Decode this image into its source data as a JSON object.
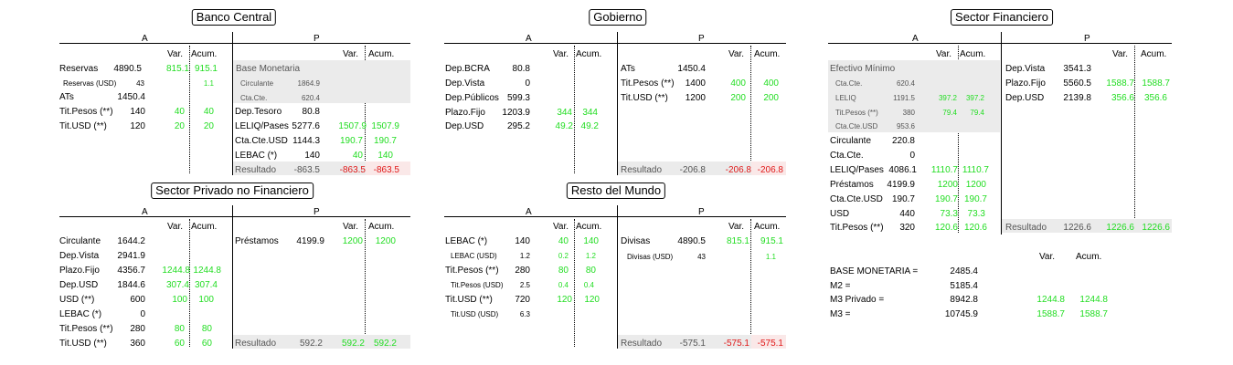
{
  "col_a": "A",
  "col_p": "P",
  "var": "Var.",
  "acum": "Acum.",
  "banco_central": {
    "title": "Banco Central",
    "assets": [
      {
        "label": "Reservas",
        "value": "4890.5",
        "var": "815.1",
        "acum": "915.1"
      },
      {
        "label": "Reservas (USD)",
        "value": "43",
        "var": "",
        "acum": "1.1",
        "small": true
      },
      {
        "label": "ATs",
        "value": "1450.4",
        "var": "",
        "acum": ""
      },
      {
        "label": "Tit.Pesos (**)",
        "value": "140",
        "var": "40",
        "acum": "40"
      },
      {
        "label": "Tit.USD (**)",
        "value": "120",
        "var": "20",
        "acum": "20"
      }
    ],
    "base_monetaria": "Base Monetaria",
    "base_items": [
      {
        "label": "Circulante",
        "value": "1864.9"
      },
      {
        "label": "Cta.Cte.",
        "value": "620.4"
      }
    ],
    "liabilities": [
      {
        "label": "Dep.Tesoro",
        "value": "80.8",
        "var": "",
        "acum": ""
      },
      {
        "label": "LELIQ/Pases",
        "value": "5277.6",
        "var": "1507.9",
        "acum": "1507.9"
      },
      {
        "label": "Cta.Cte.USD",
        "value": "1144.3",
        "var": "190.7",
        "acum": "190.7"
      },
      {
        "label": "LEBAC (*)",
        "value": "140",
        "var": "40",
        "acum": "140"
      }
    ],
    "resultado": {
      "label": "Resultado",
      "value": "-863.5",
      "var": "-863.5",
      "acum": "-863.5"
    }
  },
  "gobierno": {
    "title": "Gobierno",
    "assets": [
      {
        "label": "Dep.BCRA",
        "value": "80.8",
        "var": "",
        "acum": ""
      },
      {
        "label": "Dep.Vista",
        "value": "0",
        "var": "",
        "acum": ""
      },
      {
        "label": "Dep.Públicos",
        "value": "599.3",
        "var": "",
        "acum": ""
      },
      {
        "label": "Plazo.Fijo",
        "value": "1203.9",
        "var": "344",
        "acum": "344"
      },
      {
        "label": "Dep.USD",
        "value": "295.2",
        "var": "49.2",
        "acum": "49.2"
      }
    ],
    "liabilities": [
      {
        "label": "ATs",
        "value": "1450.4",
        "var": "",
        "acum": ""
      },
      {
        "label": "Tit.Pesos (**)",
        "value": "1400",
        "var": "400",
        "acum": "400"
      },
      {
        "label": "Tit.USD (**)",
        "value": "1200",
        "var": "200",
        "acum": "200"
      }
    ],
    "resultado": {
      "label": "Resultado",
      "value": "-206.8",
      "var": "-206.8",
      "acum": "-206.8"
    }
  },
  "sector_financiero": {
    "title": "Sector Financiero",
    "efectivo": "Efectivo Mínimo",
    "efectivo_items": [
      {
        "label": "Cta.Cte.",
        "value": "620.4",
        "var": "",
        "acum": ""
      },
      {
        "label": "LELIQ",
        "value": "1191.5",
        "var": "397.2",
        "acum": "397.2"
      },
      {
        "label": "Tit.Pesos (**)",
        "value": "380",
        "var": "79.4",
        "acum": "79.4"
      },
      {
        "label": "Cta.Cte.USD",
        "value": "953.6",
        "var": "",
        "acum": ""
      }
    ],
    "assets": [
      {
        "label": "Circulante",
        "value": "220.8",
        "var": "",
        "acum": ""
      },
      {
        "label": "Cta.Cte.",
        "value": "0",
        "var": "",
        "acum": ""
      },
      {
        "label": "LELIQ/Pases",
        "value": "4086.1",
        "var": "1110.7",
        "acum": "1110.7"
      },
      {
        "label": "Préstamos",
        "value": "4199.9",
        "var": "1200",
        "acum": "1200"
      },
      {
        "label": "Cta.Cte.USD",
        "value": "190.7",
        "var": "190.7",
        "acum": "190.7"
      },
      {
        "label": "USD",
        "value": "440",
        "var": "73.3",
        "acum": "73.3"
      },
      {
        "label": "Tit.Pesos (**)",
        "value": "320",
        "var": "120.6",
        "acum": "120.6"
      }
    ],
    "liabilities": [
      {
        "label": "Dep.Vista",
        "value": "3541.3",
        "var": "",
        "acum": ""
      },
      {
        "label": "Plazo.Fijo",
        "value": "5560.5",
        "var": "1588.7",
        "acum": "1588.7"
      },
      {
        "label": "Dep.USD",
        "value": "2139.8",
        "var": "356.6",
        "acum": "356.6"
      }
    ],
    "resultado": {
      "label": "Resultado",
      "value": "1226.6",
      "var": "1226.6",
      "acum": "1226.6"
    }
  },
  "sector_privado": {
    "title": "Sector Privado no Financiero",
    "assets": [
      {
        "label": "Circulante",
        "value": "1644.2",
        "var": "",
        "acum": ""
      },
      {
        "label": "Dep.Vista",
        "value": "2941.9",
        "var": "",
        "acum": ""
      },
      {
        "label": "Plazo.Fijo",
        "value": "4356.7",
        "var": "1244.8",
        "acum": "1244.8"
      },
      {
        "label": "Dep.USD",
        "value": "1844.6",
        "var": "307.4",
        "acum": "307.4"
      },
      {
        "label": "USD (**)",
        "value": "600",
        "var": "100",
        "acum": "100"
      },
      {
        "label": "LEBAC (*)",
        "value": "0",
        "var": "",
        "acum": ""
      },
      {
        "label": "Tit.Pesos (**)",
        "value": "280",
        "var": "80",
        "acum": "80"
      },
      {
        "label": "Tit.USD (**)",
        "value": "360",
        "var": "60",
        "acum": "60"
      }
    ],
    "liabilities": [
      {
        "label": "Préstamos",
        "value": "4199.9",
        "var": "1200",
        "acum": "1200"
      }
    ],
    "resultado": {
      "label": "Resultado",
      "value": "592.2",
      "var": "592.2",
      "acum": "592.2"
    }
  },
  "resto_mundo": {
    "title": "Resto del Mundo",
    "assets": [
      {
        "label": "LEBAC (*)",
        "value": "140",
        "var": "40",
        "acum": "140"
      },
      {
        "label": "LEBAC (USD)",
        "value": "1.2",
        "var": "0.2",
        "acum": "1.2",
        "small": true
      },
      {
        "label": "Tit.Pesos (**)",
        "value": "280",
        "var": "80",
        "acum": "80"
      },
      {
        "label": "Tit.Pesos (USD)",
        "value": "2.5",
        "var": "0.4",
        "acum": "0.4",
        "small": true
      },
      {
        "label": "Tit.USD (**)",
        "value": "720",
        "var": "120",
        "acum": "120"
      },
      {
        "label": "Tit.USD (USD)",
        "value": "6.3",
        "var": "",
        "acum": "",
        "small": true
      }
    ],
    "liabilities": [
      {
        "label": "Divisas",
        "value": "4890.5",
        "var": "815.1",
        "acum": "915.1"
      },
      {
        "label": "Divisas (USD)",
        "value": "43",
        "var": "",
        "acum": "1.1",
        "small": true
      }
    ],
    "resultado": {
      "label": "Resultado",
      "value": "-575.1",
      "var": "-575.1",
      "acum": "-575.1"
    }
  },
  "summary": {
    "var": "Var.",
    "acum": "Acum.",
    "rows": [
      {
        "label": "BASE MONETARIA =",
        "value": "2485.4",
        "var": "",
        "acum": ""
      },
      {
        "label": "M2 =",
        "value": "5185.4",
        "var": "",
        "acum": ""
      },
      {
        "label": "M3 Privado =",
        "value": "8942.8",
        "var": "1244.8",
        "acum": "1244.8"
      },
      {
        "label": "M3 =",
        "value": "10745.9",
        "var": "1588.7",
        "acum": "1588.7"
      }
    ]
  },
  "colors": {
    "green": "#22dd22",
    "red": "#e01818",
    "shade": "#ebebeb"
  }
}
